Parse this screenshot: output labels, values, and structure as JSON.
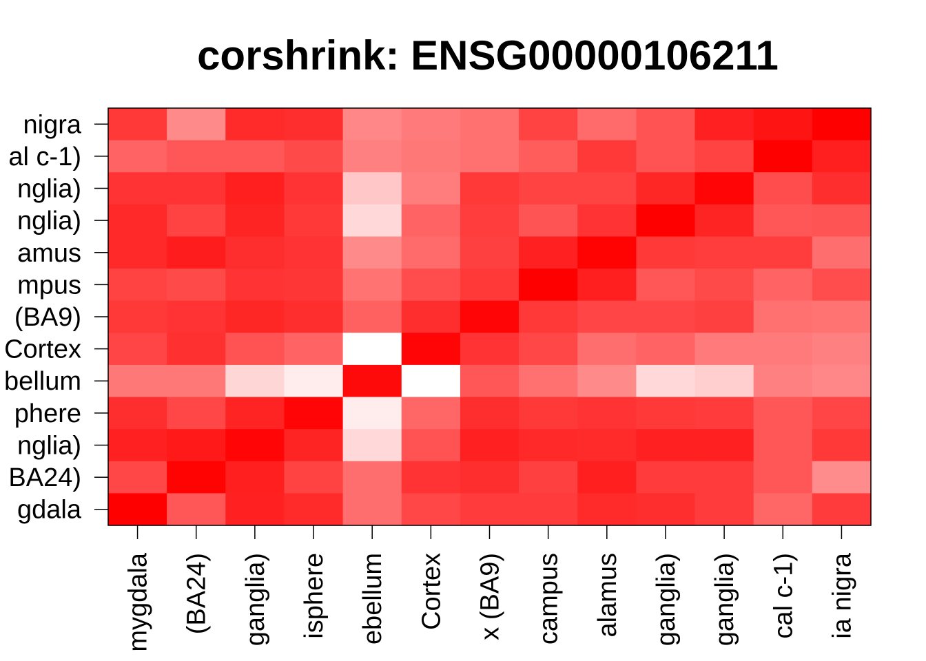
{
  "chart_data": {
    "type": "heatmap",
    "title": "corshrink: ENSG00000106211",
    "xlabel": "",
    "ylabel": "",
    "color_low": "#ffffff",
    "color_high": "#ff0000",
    "value_range": [
      0,
      1
    ],
    "grid": false,
    "x_labels_visible": [
      "mygdala",
      "(BA24)",
      "ganglia)",
      "isphere",
      "ebellum",
      "Cortex",
      "x (BA9)",
      "campus",
      "alamus",
      "ganglia)",
      "ganglia)",
      "cal c-1)",
      "ia nigra"
    ],
    "y_labels_visible": [
      "nigra",
      "al c-1)",
      "nglia)",
      "nglia)",
      "amus",
      "mpus",
      "(BA9)",
      "Cortex",
      "bellum",
      "phere",
      "nglia)",
      "BA24)",
      "gdala"
    ],
    "values": [
      [
        0.78,
        0.46,
        0.83,
        0.82,
        0.47,
        0.52,
        0.56,
        0.74,
        0.58,
        0.68,
        0.87,
        0.92,
        1.0
      ],
      [
        0.61,
        0.66,
        0.66,
        0.71,
        0.5,
        0.53,
        0.56,
        0.64,
        0.78,
        0.68,
        0.74,
        1.0,
        0.88
      ],
      [
        0.8,
        0.8,
        0.88,
        0.8,
        0.22,
        0.51,
        0.78,
        0.74,
        0.74,
        0.85,
        0.98,
        0.7,
        0.82
      ],
      [
        0.84,
        0.74,
        0.86,
        0.78,
        0.15,
        0.61,
        0.76,
        0.67,
        0.8,
        1.0,
        0.86,
        0.66,
        0.67
      ],
      [
        0.84,
        0.89,
        0.82,
        0.8,
        0.46,
        0.58,
        0.75,
        0.87,
        0.99,
        0.78,
        0.76,
        0.76,
        0.57
      ],
      [
        0.74,
        0.71,
        0.8,
        0.79,
        0.55,
        0.7,
        0.78,
        1.0,
        0.88,
        0.66,
        0.71,
        0.61,
        0.7
      ],
      [
        0.78,
        0.8,
        0.85,
        0.82,
        0.62,
        0.82,
        0.98,
        0.78,
        0.73,
        0.73,
        0.75,
        0.56,
        0.55
      ],
      [
        0.73,
        0.81,
        0.68,
        0.61,
        0.0,
        0.98,
        0.8,
        0.72,
        0.57,
        0.61,
        0.52,
        0.52,
        0.5
      ],
      [
        0.53,
        0.53,
        0.16,
        0.07,
        0.96,
        0.0,
        0.66,
        0.56,
        0.46,
        0.15,
        0.19,
        0.5,
        0.47
      ],
      [
        0.82,
        0.72,
        0.86,
        0.98,
        0.07,
        0.6,
        0.82,
        0.78,
        0.8,
        0.78,
        0.77,
        0.66,
        0.73
      ],
      [
        0.87,
        0.9,
        0.98,
        0.86,
        0.15,
        0.68,
        0.87,
        0.84,
        0.83,
        0.87,
        0.87,
        0.66,
        0.78
      ],
      [
        0.72,
        0.99,
        0.88,
        0.74,
        0.57,
        0.8,
        0.82,
        0.75,
        0.88,
        0.77,
        0.77,
        0.66,
        0.45
      ],
      [
        1.0,
        0.66,
        0.87,
        0.83,
        0.57,
        0.72,
        0.77,
        0.77,
        0.83,
        0.82,
        0.77,
        0.6,
        0.77
      ]
    ]
  }
}
